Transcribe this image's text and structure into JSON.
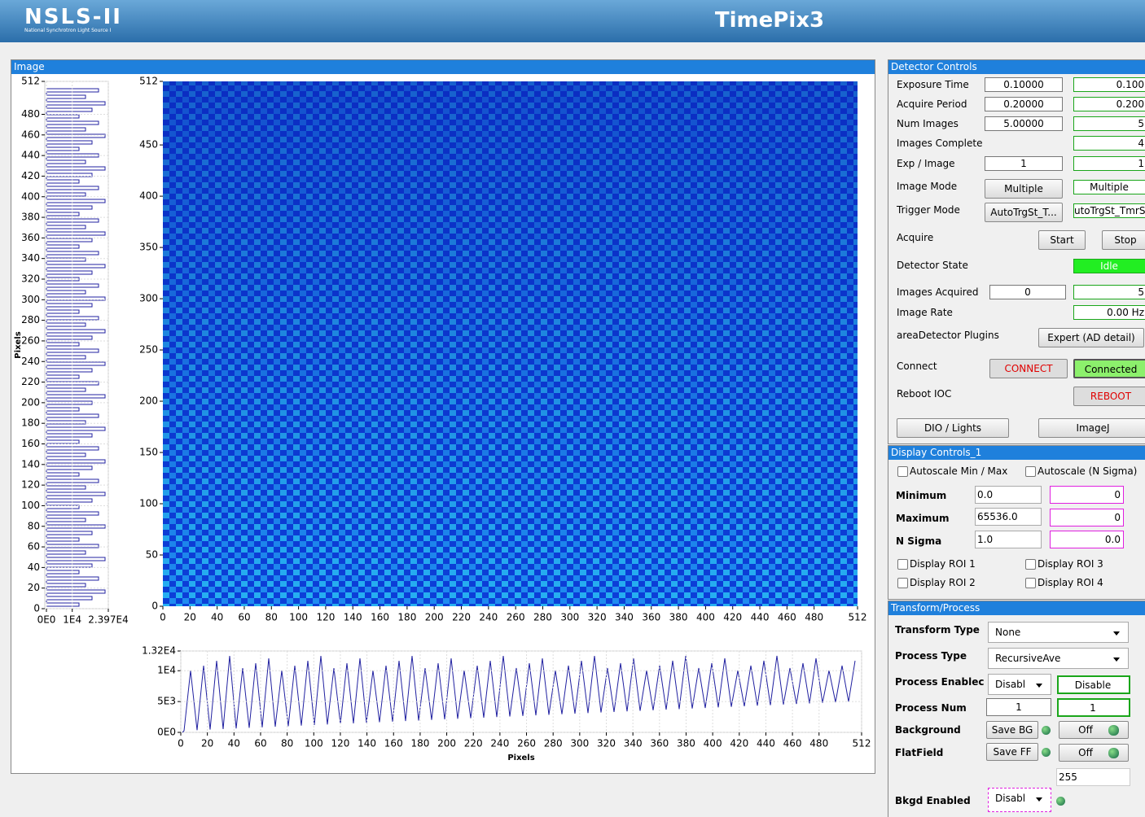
{
  "header": {
    "logo": "NSLS-II",
    "logo_subtitle": "National Synchrotron Light Source I",
    "title": "TimePix3"
  },
  "image_panel": {
    "title": "Image",
    "vertical_profile": {
      "y_label": "Pixels",
      "y_ticks": [
        0,
        20,
        40,
        60,
        80,
        100,
        120,
        140,
        160,
        180,
        200,
        220,
        240,
        260,
        280,
        300,
        320,
        340,
        360,
        380,
        400,
        420,
        440,
        460,
        480,
        512
      ],
      "x_ticks": [
        {
          "value": 0,
          "label": "0E0"
        },
        {
          "value": 10000,
          "label": "1E4"
        },
        {
          "value": 23970,
          "label": "2.397E4"
        }
      ]
    },
    "heatmap": {
      "x_ticks": [
        0,
        20,
        40,
        60,
        80,
        100,
        120,
        140,
        160,
        180,
        200,
        220,
        240,
        260,
        280,
        300,
        320,
        340,
        360,
        380,
        400,
        420,
        440,
        460,
        480,
        512
      ],
      "y_ticks": [
        0,
        50,
        100,
        150,
        200,
        250,
        300,
        350,
        400,
        450,
        512
      ]
    },
    "horizontal_profile": {
      "x_label": "Pixels",
      "x_ticks": [
        0,
        20,
        40,
        60,
        80,
        100,
        120,
        140,
        160,
        180,
        200,
        220,
        240,
        260,
        280,
        300,
        320,
        340,
        360,
        380,
        400,
        420,
        440,
        460,
        480,
        512
      ],
      "y_ticks": [
        {
          "value": 0,
          "label": "0E0"
        },
        {
          "value": 5000,
          "label": "5E3"
        },
        {
          "value": 10000,
          "label": "1E4"
        },
        {
          "value": 13200,
          "label": "1.32E4"
        }
      ]
    }
  },
  "detector_controls": {
    "title": "Detector Controls",
    "exposure_time": {
      "label": "Exposure Time",
      "setpoint": "0.10000",
      "readback": "0.100"
    },
    "acquire_period": {
      "label": "Acquire Period",
      "setpoint": "0.20000",
      "readback": "0.200"
    },
    "num_images": {
      "label": "Num Images",
      "setpoint": "5.00000",
      "readback": "5"
    },
    "images_complete": {
      "label": "Images Complete",
      "readback": "4"
    },
    "exp_image": {
      "label": "Exp / Image",
      "setpoint": "1",
      "readback": "1"
    },
    "image_mode": {
      "label": "Image Mode",
      "setpoint": "Multiple",
      "readback": "Multiple"
    },
    "trigger_mode": {
      "label": "Trigger Mode",
      "setpoint": "AutoTrgSt_T...",
      "readback": "utoTrgSt_TmrS"
    },
    "acquire": {
      "label": "Acquire",
      "start": "Start",
      "stop": "Stop"
    },
    "detector_state": {
      "label": "Detector State",
      "readback": "Idle"
    },
    "images_acquired": {
      "label": "Images Acquired",
      "setpoint": "0",
      "readback": "5"
    },
    "image_rate": {
      "label": "Image Rate",
      "readback": "0.00 Hz"
    },
    "plugins": {
      "label": "areaDetector Plugins",
      "button": "Expert (AD detail)"
    },
    "connect": {
      "label": "Connect",
      "button": "CONNECT",
      "readback": "Connected"
    },
    "reboot": {
      "label": "Reboot IOC",
      "button": "REBOOT"
    },
    "dio_lights": "DIO / Lights",
    "imagej": "ImageJ"
  },
  "display_controls": {
    "title": "Display Controls_1",
    "autoscale_minmax": "Autoscale Min / Max",
    "autoscale_nsigma": "Autoscale (N Sigma)",
    "minimum": {
      "label": "Minimum",
      "setpoint": "0.0",
      "readback": "0"
    },
    "maximum": {
      "label": "Maximum",
      "setpoint": "65536.0",
      "readback": "0"
    },
    "n_sigma": {
      "label": "N Sigma",
      "setpoint": "1.0",
      "readback": "0.0"
    },
    "roi": [
      "Display ROI 1",
      "Display ROI 2",
      "Display ROI 3",
      "Display ROI 4"
    ]
  },
  "transform_process": {
    "title": "Transform/Process",
    "transform_type": {
      "label": "Transform Type",
      "value": "None"
    },
    "process_type": {
      "label": "Process Type",
      "value": "RecursiveAve"
    },
    "process_enabled": {
      "label": "Process Enablec",
      "value": "Disabl",
      "readback": "Disable"
    },
    "process_num": {
      "label": "Process Num",
      "setpoint": "1",
      "readback": "1"
    },
    "background": {
      "label": "Background",
      "button": "Save BG",
      "toggle": "Off"
    },
    "flatfield": {
      "label": "FlatField",
      "button": "Save FF",
      "toggle": "Off"
    },
    "flatfield_value": "255",
    "bkgd_enabled": {
      "label": "Bkgd Enabled",
      "value": "Disabl"
    }
  }
}
